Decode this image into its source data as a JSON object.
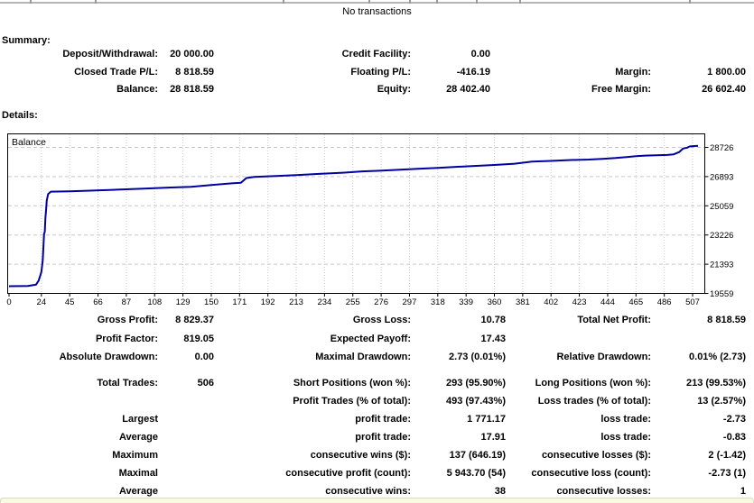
{
  "page": {
    "no_transactions_label": "No transactions"
  },
  "summary": {
    "title": "Summary:",
    "rows": [
      [
        "Deposit/Withdrawal:",
        "20 000.00",
        "Credit Facility:",
        "0.00",
        "",
        ""
      ],
      [
        "Closed Trade P/L:",
        "8 818.59",
        "Floating P/L:",
        "-416.19",
        "Margin:",
        "1 800.00"
      ],
      [
        "Balance:",
        "28 818.59",
        "Equity:",
        "28 402.40",
        "Free Margin:",
        "26 602.40"
      ]
    ]
  },
  "details": {
    "title": "Details:",
    "stats_top": [
      [
        "Gross Profit:",
        "8 829.37",
        "Gross Loss:",
        "10.78",
        "Total Net Profit:",
        "8 818.59"
      ],
      [
        "Profit Factor:",
        "819.05",
        "Expected Payoff:",
        "17.43",
        "",
        ""
      ],
      [
        "Absolute Drawdown:",
        "0.00",
        "Maximal Drawdown:",
        "2.73 (0.01%)",
        "Relative Drawdown:",
        "0.01% (2.73)"
      ]
    ],
    "stats_trades": [
      [
        "Total Trades:",
        "506",
        "Short Positions (won %):",
        "293 (95.90%)",
        "Long Positions (won %):",
        "213 (99.53%)"
      ],
      [
        "",
        "",
        "Profit Trades (% of total):",
        "493 (97.43%)",
        "Loss trades (% of total):",
        "13 (2.57%)"
      ],
      [
        "Largest",
        "",
        "profit trade:",
        "1 771.17",
        "loss trade:",
        "-2.73"
      ],
      [
        "Average",
        "",
        "profit trade:",
        "17.91",
        "loss trade:",
        "-0.83"
      ],
      [
        "Maximum",
        "",
        "consecutive wins ($):",
        "137 (646.19)",
        "consecutive losses ($):",
        "2 (-1.42)"
      ],
      [
        "Maximal",
        "",
        "consecutive profit (count):",
        "5 943.70 (54)",
        "consecutive loss (count):",
        "-2.73 (1)"
      ],
      [
        "Average",
        "",
        "consecutive wins:",
        "38",
        "consecutive losses:",
        "1"
      ]
    ]
  },
  "chart_data": {
    "type": "line",
    "title": "Balance",
    "xlabel": "",
    "ylabel": "",
    "xlim": [
      0,
      507
    ],
    "ylim": [
      19559,
      29580
    ],
    "x_ticks": [
      0,
      24,
      45,
      66,
      87,
      108,
      129,
      150,
      171,
      192,
      213,
      234,
      255,
      276,
      297,
      318,
      339,
      360,
      381,
      402,
      423,
      444,
      465,
      486,
      507
    ],
    "y_ticks": [
      19559,
      21393,
      23226,
      25059,
      26893,
      28726
    ],
    "grid": true,
    "legend_position": "top-left-inside",
    "line_color": "#0000a0",
    "grid_color": "#c8c8c8",
    "series": [
      {
        "name": "Balance",
        "points": [
          [
            0,
            20010
          ],
          [
            14,
            20030
          ],
          [
            20,
            20110
          ],
          [
            22,
            20360
          ],
          [
            24,
            20900
          ],
          [
            25,
            21600
          ],
          [
            26,
            23300
          ],
          [
            26.5,
            23420
          ],
          [
            27,
            24300
          ],
          [
            27.5,
            24850
          ],
          [
            28,
            25400
          ],
          [
            29,
            25800
          ],
          [
            31,
            25950
          ],
          [
            45,
            25970
          ],
          [
            60,
            26010
          ],
          [
            80,
            26070
          ],
          [
            100,
            26140
          ],
          [
            120,
            26210
          ],
          [
            135,
            26250
          ],
          [
            150,
            26360
          ],
          [
            165,
            26470
          ],
          [
            172,
            26500
          ],
          [
            176,
            26800
          ],
          [
            182,
            26870
          ],
          [
            200,
            26940
          ],
          [
            213,
            26990
          ],
          [
            230,
            27060
          ],
          [
            250,
            27150
          ],
          [
            262,
            27220
          ],
          [
            275,
            27260
          ],
          [
            290,
            27330
          ],
          [
            305,
            27390
          ],
          [
            318,
            27440
          ],
          [
            330,
            27500
          ],
          [
            345,
            27560
          ],
          [
            360,
            27620
          ],
          [
            375,
            27700
          ],
          [
            388,
            27840
          ],
          [
            402,
            27880
          ],
          [
            415,
            27930
          ],
          [
            430,
            27960
          ],
          [
            440,
            28010
          ],
          [
            450,
            28060
          ],
          [
            458,
            28120
          ],
          [
            465,
            28170
          ],
          [
            472,
            28210
          ],
          [
            480,
            28230
          ],
          [
            488,
            28250
          ],
          [
            493,
            28290
          ],
          [
            497,
            28430
          ],
          [
            500,
            28650
          ],
          [
            503,
            28710
          ],
          [
            505,
            28790
          ],
          [
            511,
            28825
          ]
        ]
      }
    ]
  }
}
